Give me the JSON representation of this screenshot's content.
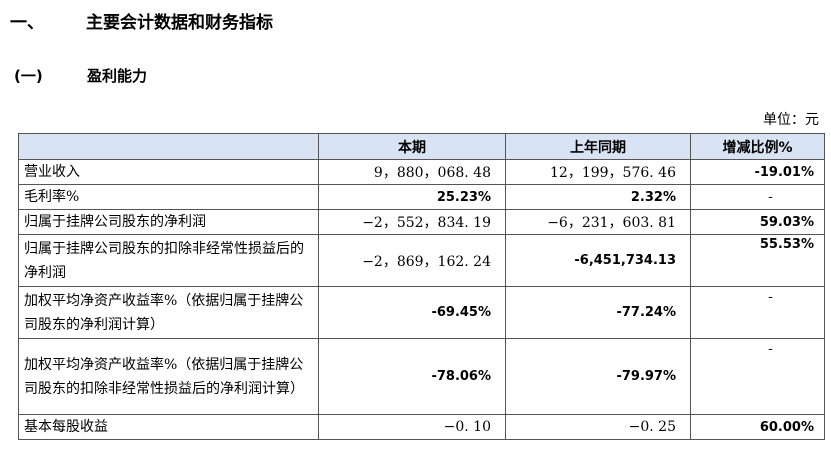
{
  "heading1": {
    "number": "一、",
    "title": "主要会计数据和财务指标"
  },
  "heading2": {
    "number": "(一)",
    "title": "盈利能力"
  },
  "unit_label": "单位：元",
  "table": {
    "headers": [
      "",
      "本期",
      "上年同期",
      "增减比例%"
    ],
    "rows": [
      {
        "label": "营业收入",
        "current": "9，880，068. 48",
        "prior": "12，199，576. 46",
        "change": "-19.01%"
      },
      {
        "label": "毛利率%",
        "current": "25.23%",
        "prior": "2.32%",
        "change": "-"
      },
      {
        "label": "归属于挂牌公司股东的净利润",
        "current": "−2，552，834. 19",
        "prior": "−6，231，603. 81",
        "change": "59.03%"
      },
      {
        "label": "归属于挂牌公司股东的扣除非经常性损益后的净利润",
        "current": "−2，869，162. 24",
        "prior": "-6,451,734.13",
        "change": "55.53%"
      },
      {
        "label": "加权平均净资产收益率%（依据归属于挂牌公司股东的净利润计算）",
        "current": "-69.45%",
        "prior": "-77.24%",
        "change": "-"
      },
      {
        "label": "加权平均净资产收益率%（依据归属于挂牌公司股东的扣除非经常性损益后的净利润计算）",
        "current": "-78.06%",
        "prior": "-79.97%",
        "change": "-"
      },
      {
        "label": "基本每股收益",
        "current": "−0. 10",
        "prior": "−0. 25",
        "change": "60.00%"
      }
    ]
  }
}
